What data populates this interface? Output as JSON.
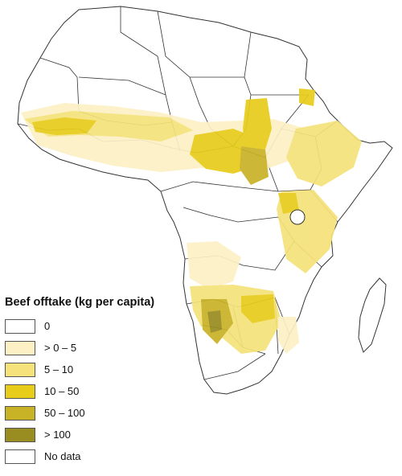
{
  "legend": {
    "title": "Beef offtake (kg per capita)",
    "classes": [
      {
        "label": "0",
        "color": "#ffffff"
      },
      {
        "label": "> 0 – 5",
        "color": "#fcf0c4"
      },
      {
        "label": "5 – 10",
        "color": "#f5e27a"
      },
      {
        "label": "10 – 50",
        "color": "#e8cc1a"
      },
      {
        "label": "50 – 100",
        "color": "#c8b226"
      },
      {
        "label": "> 100",
        "color": "#998c20"
      },
      {
        "label": "No data",
        "color": "#ffffff"
      }
    ]
  },
  "colors": {
    "border": "#333333",
    "land": "#ffffff"
  }
}
